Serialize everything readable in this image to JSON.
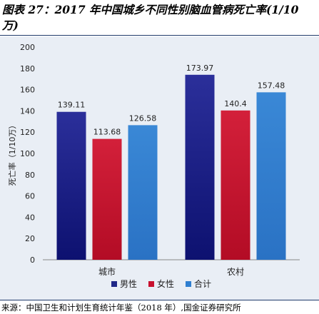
{
  "title": "图表 27：2017 年中国城乡不同性别脑血管病死亡率(1/10 万)",
  "source": "来源：中国卫生和计划生育统计年鉴（2018 年）,国金证券研究所",
  "chart_data": {
    "type": "bar",
    "categories": [
      "城市",
      "农村"
    ],
    "series": [
      {
        "name": "男性",
        "values": [
          139.11,
          173.97
        ],
        "color": "#1f2787"
      },
      {
        "name": "女性",
        "values": [
          113.68,
          140.4
        ],
        "color": "#c8102e"
      },
      {
        "name": "合计",
        "values": [
          126.58,
          157.48
        ],
        "color": "#2f7fd0"
      }
    ],
    "ylabel": "死亡率（1/10万）",
    "ylim": [
      0,
      200
    ],
    "yticks": [
      0,
      20,
      40,
      60,
      80,
      100,
      120,
      140,
      160,
      180,
      200
    ],
    "grid": false,
    "legend": "bottom"
  }
}
